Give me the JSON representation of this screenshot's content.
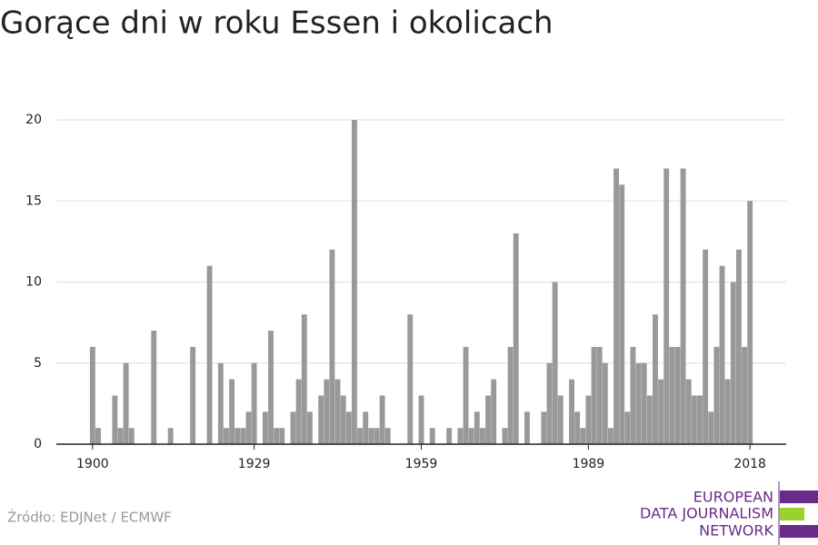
{
  "chart_data": {
    "type": "bar",
    "title": "Gorące dni w roku Essen i okolicach",
    "x": [
      1900,
      1901,
      1902,
      1903,
      1904,
      1905,
      1906,
      1907,
      1908,
      1909,
      1910,
      1911,
      1912,
      1913,
      1914,
      1915,
      1916,
      1917,
      1918,
      1919,
      1920,
      1921,
      1922,
      1923,
      1924,
      1925,
      1926,
      1927,
      1928,
      1929,
      1930,
      1931,
      1932,
      1933,
      1934,
      1935,
      1936,
      1937,
      1938,
      1939,
      1940,
      1941,
      1942,
      1943,
      1944,
      1945,
      1946,
      1947,
      1948,
      1949,
      1950,
      1951,
      1952,
      1953,
      1954,
      1955,
      1956,
      1957,
      1958,
      1959,
      1960,
      1961,
      1962,
      1963,
      1964,
      1965,
      1966,
      1967,
      1968,
      1969,
      1970,
      1971,
      1972,
      1973,
      1974,
      1975,
      1976,
      1977,
      1978,
      1979,
      1980,
      1981,
      1982,
      1983,
      1984,
      1985,
      1986,
      1987,
      1988,
      1989,
      1990,
      1991,
      1992,
      1993,
      1994,
      1995,
      1996,
      1997,
      1998,
      1999,
      2000,
      2001,
      2002,
      2003,
      2004,
      2005,
      2006,
      2007,
      2008,
      2009,
      2010,
      2011,
      2012,
      2013,
      2014,
      2015,
      2016,
      2017,
      2018
    ],
    "values": [
      6,
      1,
      0,
      0,
      3,
      1,
      5,
      1,
      0,
      0,
      0,
      7,
      0,
      0,
      1,
      0,
      0,
      0,
      6,
      0,
      0,
      11,
      0,
      5,
      1,
      4,
      1,
      1,
      2,
      5,
      0,
      2,
      7,
      1,
      1,
      0,
      2,
      4,
      8,
      2,
      0,
      3,
      4,
      12,
      4,
      3,
      2,
      20,
      1,
      2,
      1,
      1,
      3,
      1,
      0,
      0,
      0,
      8,
      0,
      3,
      0,
      1,
      0,
      0,
      1,
      0,
      1,
      6,
      1,
      2,
      1,
      3,
      4,
      0,
      1,
      6,
      13,
      0,
      2,
      0,
      0,
      2,
      5,
      10,
      3,
      0,
      4,
      2,
      1,
      3,
      6,
      6,
      5,
      1,
      17,
      16,
      2,
      6,
      5,
      5,
      3,
      8,
      4,
      17,
      6,
      6,
      17,
      4,
      3,
      3,
      12,
      2,
      6,
      11,
      4,
      10,
      12,
      6,
      15
    ],
    "color": "#999999",
    "xlim": [
      1893.5,
      2024.5
    ],
    "xticks": [
      1900,
      1929,
      1959,
      1989,
      2018
    ],
    "ylim": [
      0,
      20
    ],
    "yticks": [
      0,
      5,
      10,
      15,
      20
    ],
    "grid": true
  },
  "source": "Źródło: EDJNet / ECMWF",
  "logo": {
    "lines": [
      "EUROPEAN",
      "DATA JOURNALISM",
      "NETWORK"
    ]
  }
}
